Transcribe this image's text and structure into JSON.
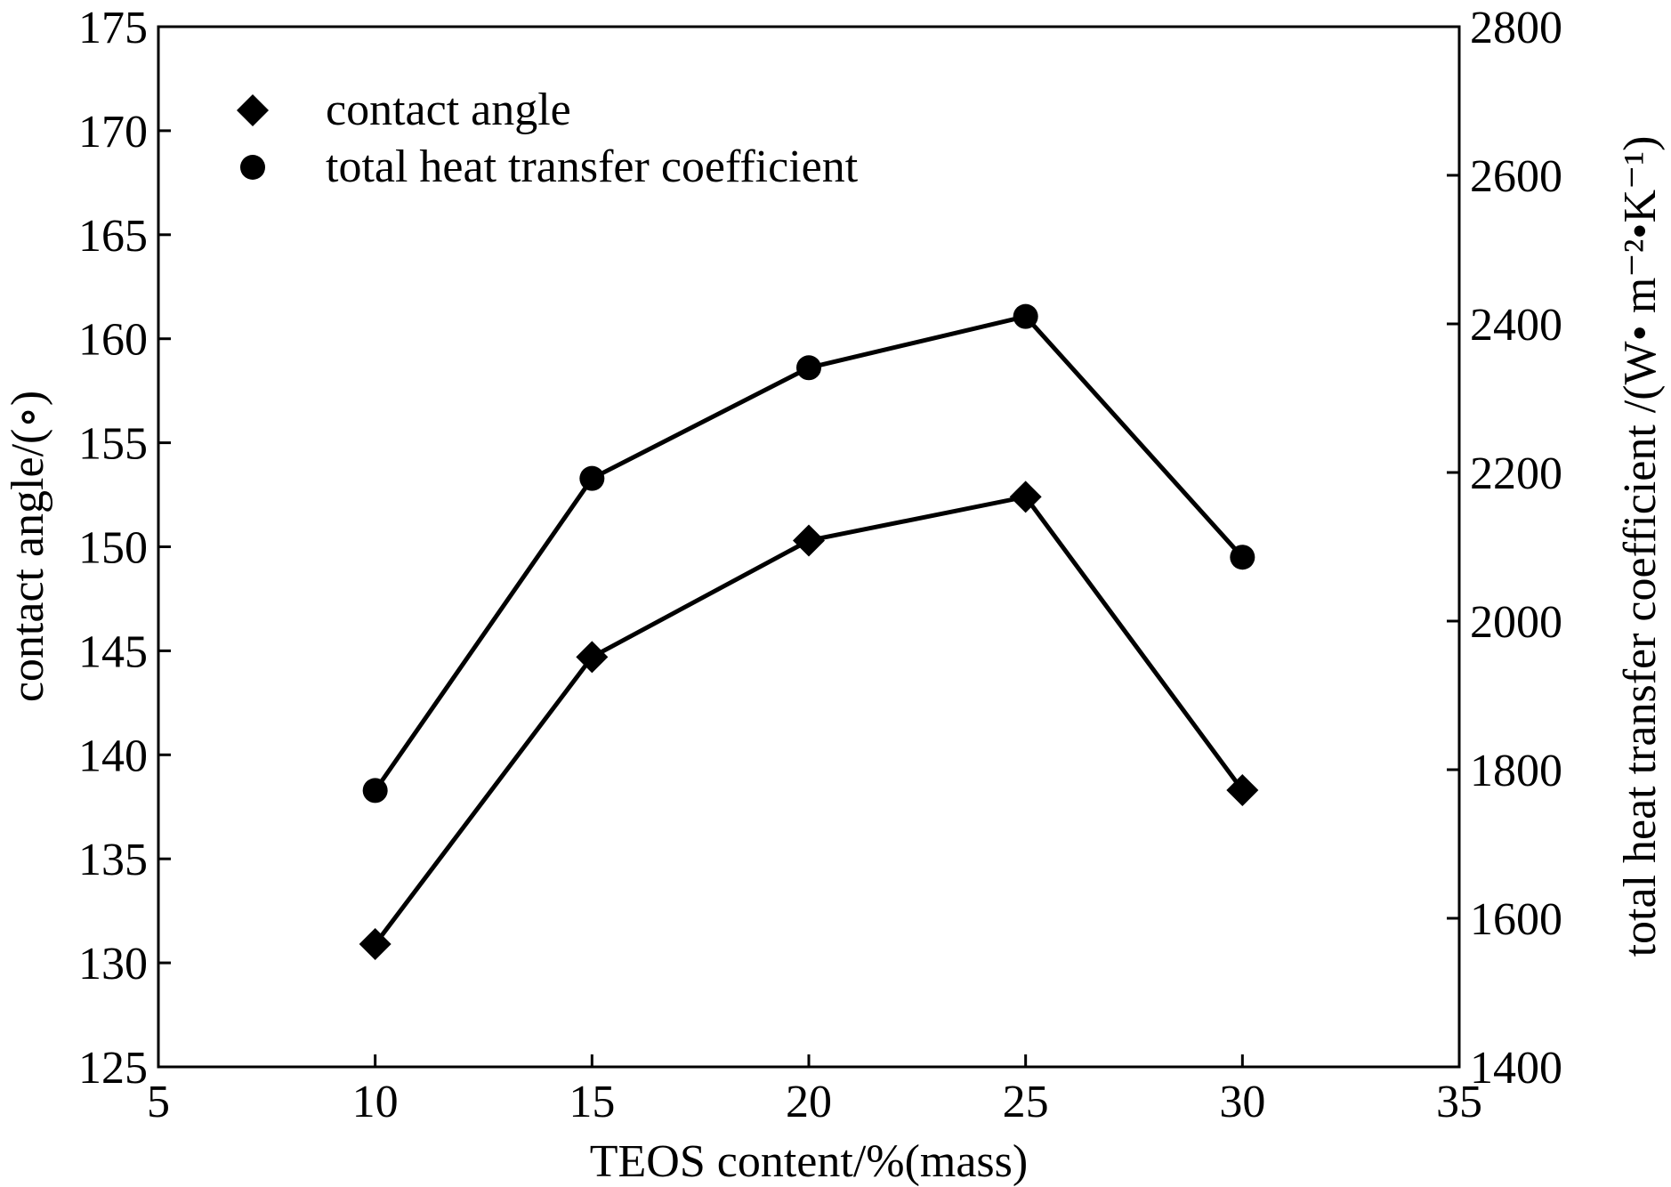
{
  "chart_data": {
    "type": "line",
    "title": "",
    "xlabel": "TEOS content/%(mass)",
    "ylabel": "contact angle/(∘)",
    "y2label": "total heat transfer coefficient /(W• m⁻²•K⁻¹)",
    "xlim": [
      5,
      35
    ],
    "ylim": [
      125,
      175
    ],
    "y2lim": [
      1400,
      2800
    ],
    "xticks": [
      5,
      10,
      15,
      20,
      25,
      30,
      35
    ],
    "yticks": [
      125,
      130,
      135,
      140,
      145,
      150,
      155,
      160,
      165,
      170,
      175
    ],
    "y2ticks": [
      1400,
      1600,
      1800,
      2000,
      2200,
      2400,
      2600,
      2800
    ],
    "grid": false,
    "legend_position": "top-left",
    "x": [
      10,
      15,
      20,
      25,
      30
    ],
    "series": [
      {
        "name": "contact angle",
        "axis": "left",
        "marker": "diamond",
        "values": [
          130.9,
          144.7,
          150.3,
          152.4,
          138.3
        ]
      },
      {
        "name": "total heat transfer coefficient",
        "axis": "right",
        "marker": "circle",
        "values": [
          1772,
          2192,
          2341,
          2410,
          2086
        ]
      }
    ],
    "colors": {
      "line": "#000000",
      "background": "#ffffff"
    }
  }
}
